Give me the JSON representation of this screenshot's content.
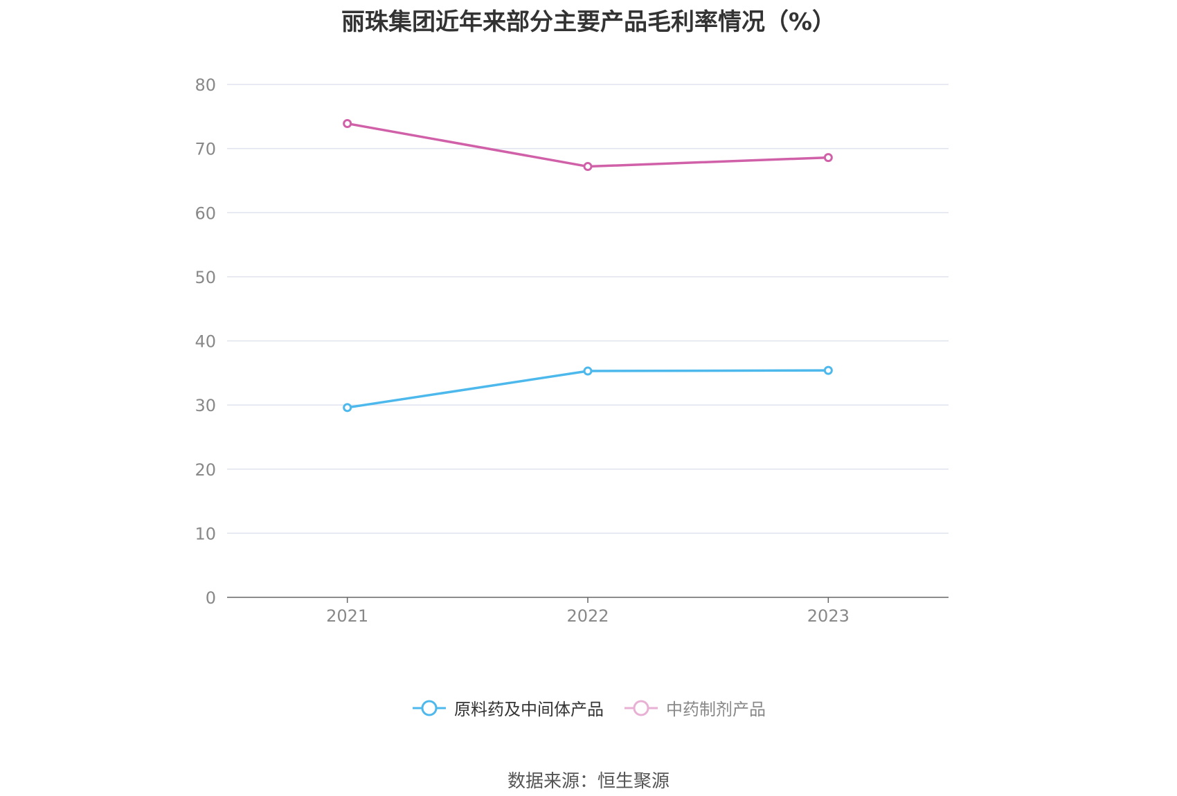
{
  "chart_data": {
    "type": "line",
    "title": "丽珠集团近年来部分主要产品毛利率情况（%）",
    "categories": [
      "2021",
      "2022",
      "2023"
    ],
    "series": [
      {
        "name": "原料药及中间体产品",
        "color": "#4cb8ec",
        "values": [
          29.6,
          35.3,
          35.4
        ]
      },
      {
        "name": "中药制剂产品",
        "color": "#d060a8",
        "values": [
          73.9,
          67.2,
          68.6
        ]
      }
    ],
    "ylim": [
      0,
      80
    ],
    "yticks": [
      0,
      10,
      20,
      30,
      40,
      50,
      60,
      70,
      80
    ],
    "grid": true,
    "legend_position": "bottom-center",
    "source": "数据来源：恒生聚源"
  }
}
